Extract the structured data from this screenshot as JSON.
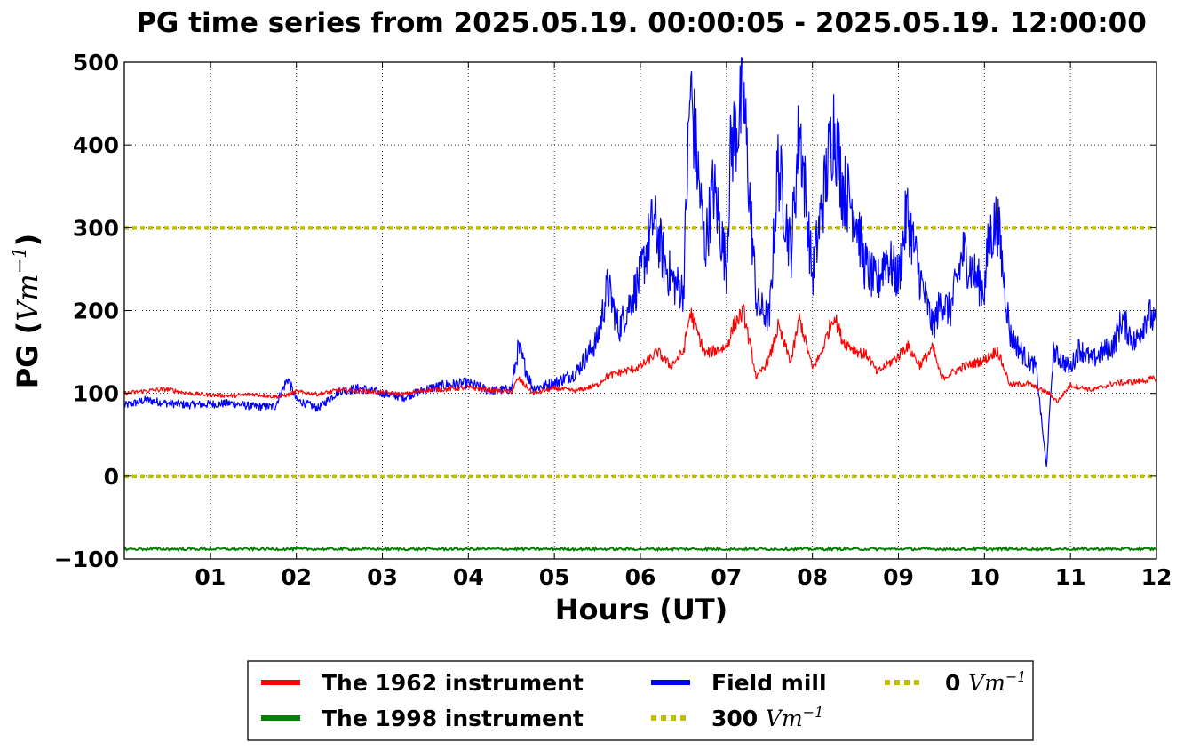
{
  "chart_data": {
    "type": "line",
    "title": "PG time series from 2025.05.19. 00:00:05 - 2025.05.19. 12:00:00",
    "xlabel": "Hours (UT)",
    "ylabel": {
      "prefix": "PG (",
      "unit": "Vm",
      "exponent": "−1",
      "suffix": ")"
    },
    "xlim": [
      0,
      12
    ],
    "ylim": [
      -100,
      500
    ],
    "grid": true,
    "legend_position": "bottom-center",
    "x_ticks": [
      {
        "x": 1,
        "label": "01"
      },
      {
        "x": 2,
        "label": "02"
      },
      {
        "x": 3,
        "label": "03"
      },
      {
        "x": 4,
        "label": "04"
      },
      {
        "x": 5,
        "label": "05"
      },
      {
        "x": 6,
        "label": "06"
      },
      {
        "x": 7,
        "label": "07"
      },
      {
        "x": 8,
        "label": "08"
      },
      {
        "x": 9,
        "label": "09"
      },
      {
        "x": 10,
        "label": "10"
      },
      {
        "x": 11,
        "label": "11"
      },
      {
        "x": 12,
        "label": "12"
      }
    ],
    "y_ticks": [
      {
        "y": -100,
        "label": "−100"
      },
      {
        "y": 0,
        "label": "0"
      },
      {
        "y": 100,
        "label": "100"
      },
      {
        "y": 200,
        "label": "200"
      },
      {
        "y": 300,
        "label": "300"
      },
      {
        "y": 400,
        "label": "400"
      },
      {
        "y": 500,
        "label": "500"
      }
    ],
    "series": [
      {
        "name": "The 1962 instrument",
        "color": "#ff0000",
        "style": "solid",
        "x": [
          0,
          0.25,
          0.5,
          0.75,
          1,
          1.25,
          1.5,
          1.75,
          1.9,
          2,
          2.25,
          2.5,
          2.75,
          3,
          3.25,
          3.5,
          3.75,
          4,
          4.25,
          4.5,
          4.58,
          4.75,
          5,
          5.25,
          5.5,
          5.6,
          5.75,
          6,
          6.2,
          6.35,
          6.5,
          6.58,
          6.75,
          7,
          7.1,
          7.2,
          7.35,
          7.5,
          7.6,
          7.75,
          7.85,
          8,
          8.1,
          8.25,
          8.35,
          8.5,
          8.65,
          8.75,
          9,
          9.1,
          9.25,
          9.4,
          9.5,
          9.75,
          10,
          10.15,
          10.3,
          10.5,
          10.75,
          10.85,
          11,
          11.25,
          11.5,
          11.75,
          12
        ],
        "y": [
          100,
          103,
          105,
          100,
          98,
          97,
          99,
          96,
          98,
          102,
          99,
          104,
          103,
          101,
          99,
          104,
          105,
          107,
          104,
          102,
          118,
          100,
          106,
          103,
          110,
          120,
          125,
          132,
          150,
          133,
          150,
          198,
          148,
          156,
          186,
          198,
          118,
          142,
          180,
          138,
          191,
          130,
          148,
          195,
          164,
          152,
          145,
          125,
          145,
          158,
          134,
          155,
          118,
          132,
          140,
          152,
          110,
          112,
          100,
          90,
          110,
          104,
          112,
          114,
          118
        ]
      },
      {
        "name": "The 1998 instrument",
        "color": "#008000",
        "style": "solid",
        "x": [
          0,
          12
        ],
        "y": [
          -88,
          -88
        ]
      },
      {
        "name": "Field mill",
        "color": "#0000ff",
        "style": "solid",
        "x": [
          0,
          0.25,
          0.5,
          0.75,
          1,
          1.25,
          1.5,
          1.75,
          1.9,
          2,
          2.25,
          2.5,
          2.75,
          3,
          3.25,
          3.5,
          3.75,
          4,
          4.25,
          4.5,
          4.58,
          4.75,
          5,
          5.25,
          5.5,
          5.62,
          5.75,
          6,
          6.15,
          6.3,
          6.4,
          6.5,
          6.58,
          6.75,
          6.85,
          7,
          7.05,
          7.2,
          7.35,
          7.5,
          7.6,
          7.75,
          7.85,
          8,
          8.1,
          8.25,
          8.35,
          8.5,
          8.6,
          8.75,
          8.85,
          9,
          9.1,
          9.25,
          9.4,
          9.5,
          9.6,
          9.75,
          9.9,
          10,
          10.05,
          10.15,
          10.3,
          10.4,
          10.5,
          10.6,
          10.72,
          10.8,
          10.9,
          11,
          11.1,
          11.25,
          11.4,
          11.5,
          11.6,
          11.75,
          11.9,
          12
        ],
        "y": [
          85,
          92,
          88,
          86,
          87,
          88,
          84,
          84,
          118,
          92,
          82,
          103,
          106,
          100,
          95,
          105,
          110,
          112,
          103,
          105,
          155,
          106,
          112,
          125,
          165,
          230,
          178,
          240,
          310,
          252,
          232,
          224,
          470,
          275,
          350,
          252,
          395,
          455,
          208,
          190,
          378,
          270,
          425,
          240,
          318,
          428,
          350,
          320,
          258,
          230,
          266,
          238,
          320,
          240,
          180,
          212,
          198,
          270,
          240,
          225,
          285,
          310,
          170,
          155,
          140,
          132,
          10,
          150,
          140,
          130,
          155,
          140,
          152,
          158,
          190,
          160,
          198,
          180
        ]
      },
      {
        "name": "300 Vm−1",
        "legend_number": "300",
        "legend_unit": "Vm",
        "legend_exp": "−1",
        "color": "#bfbf00",
        "style": "dotted",
        "x": [
          0,
          12
        ],
        "y": [
          300,
          300
        ]
      },
      {
        "name": "0 Vm−1",
        "legend_number": "0",
        "legend_unit": "Vm",
        "legend_exp": "−1",
        "color": "#bfbf00",
        "style": "dotted",
        "x": [
          0,
          12
        ],
        "y": [
          0,
          0
        ]
      }
    ]
  }
}
